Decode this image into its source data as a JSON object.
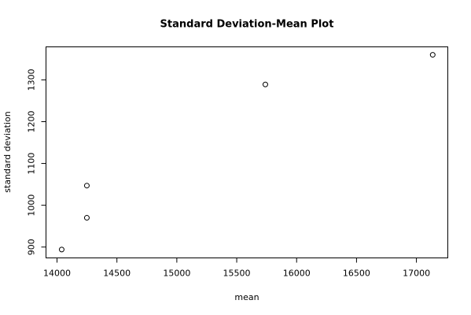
{
  "chart_data": {
    "type": "scatter",
    "title": "Standard Deviation-Mean Plot",
    "x_label": "mean",
    "y_label": "standard deviation",
    "x": [
      14039,
      14249,
      14249,
      15739,
      17136
    ],
    "values": [
      894,
      1047,
      970,
      1289,
      1360
    ],
    "xlim": [
      13908,
      17262
    ],
    "ylim": [
      874,
      1379
    ],
    "xticks": [
      14000,
      14500,
      15000,
      15500,
      16000,
      16500,
      17000
    ],
    "yticks": [
      900,
      1000,
      1100,
      1200,
      1300
    ],
    "color": "#000000"
  }
}
